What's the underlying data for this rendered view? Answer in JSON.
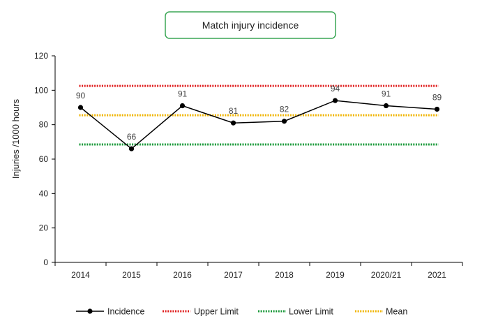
{
  "chart_data": {
    "type": "line",
    "title": "Match injury incidence",
    "ylabel": "Injuries /1000 hours",
    "xlabel": "",
    "categories": [
      "2014",
      "2015",
      "2016",
      "2017",
      "2018",
      "2019",
      "2020/21",
      "2021"
    ],
    "ylim": [
      0,
      120
    ],
    "yticks": [
      0,
      20,
      40,
      60,
      80,
      100,
      120
    ],
    "grid": false,
    "legend_position": "bottom",
    "series": [
      {
        "name": "Incidence",
        "values": [
          90,
          66,
          91,
          81,
          82,
          94,
          91,
          89
        ],
        "color": "#000000",
        "style": "solid-markers",
        "data_labels": [
          "90",
          "66",
          "91",
          "81",
          "82",
          "94",
          "91",
          "89"
        ]
      },
      {
        "name": "Upper Limit",
        "values": [
          102.5,
          102.5,
          102.5,
          102.5,
          102.5,
          102.5,
          102.5,
          102.5
        ],
        "color": "#e02020",
        "style": "dotted"
      },
      {
        "name": "Lower Limit",
        "values": [
          68.5,
          68.5,
          68.5,
          68.5,
          68.5,
          68.5,
          68.5,
          68.5
        ],
        "color": "#1a9a3a",
        "style": "dotted"
      },
      {
        "name": "Mean",
        "values": [
          85.5,
          85.5,
          85.5,
          85.5,
          85.5,
          85.5,
          85.5,
          85.5
        ],
        "color": "#f0b400",
        "style": "dotted"
      }
    ]
  },
  "colors": {
    "title_border": "#3aa655",
    "axis": "#000000"
  }
}
